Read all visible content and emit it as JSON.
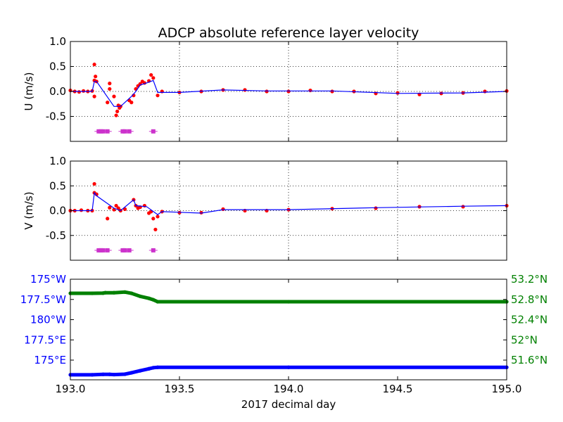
{
  "chart_data": [
    {
      "type": "scatter",
      "title": "ADCP absolute reference layer velocity",
      "ylabel": "U (m/s)",
      "xlim": [
        193.0,
        195.0
      ],
      "ylim": [
        -1.0,
        1.0
      ],
      "yticks": [
        "1.0",
        "0.5",
        "0.0",
        "-0.5"
      ],
      "grid": true,
      "series": [
        {
          "color": "#ff0000",
          "points": [
            [
              193.0,
              0.02
            ],
            [
              193.02,
              0.0
            ],
            [
              193.04,
              -0.01
            ],
            [
              193.06,
              0.01
            ],
            [
              193.08,
              0.0
            ],
            [
              193.1,
              0.01
            ],
            [
              193.11,
              0.22
            ],
            [
              193.11,
              0.54
            ],
            [
              193.115,
              0.3
            ],
            [
              193.11,
              -0.1
            ],
            [
              193.12,
              0.2
            ],
            [
              193.17,
              -0.22
            ],
            [
              193.18,
              0.16
            ],
            [
              193.18,
              0.05
            ],
            [
              193.2,
              -0.1
            ],
            [
              193.21,
              -0.48
            ],
            [
              193.215,
              -0.4
            ],
            [
              193.22,
              -0.28
            ],
            [
              193.225,
              -0.33
            ],
            [
              193.23,
              -0.3
            ],
            [
              193.27,
              -0.18
            ],
            [
              193.28,
              -0.22
            ],
            [
              193.29,
              -0.08
            ],
            [
              193.3,
              0.05
            ],
            [
              193.31,
              0.11
            ],
            [
              193.32,
              0.15
            ],
            [
              193.33,
              0.2
            ],
            [
              193.34,
              0.17
            ],
            [
              193.36,
              0.21
            ],
            [
              193.37,
              0.33
            ],
            [
              193.38,
              0.27
            ],
            [
              193.4,
              -0.08
            ],
            [
              193.42,
              0.0
            ],
            [
              193.5,
              -0.02
            ],
            [
              193.6,
              0.0
            ],
            [
              193.7,
              0.03
            ],
            [
              193.8,
              0.03
            ],
            [
              193.9,
              0.0
            ],
            [
              194.0,
              0.0
            ],
            [
              194.1,
              0.02
            ],
            [
              194.2,
              0.0
            ],
            [
              194.3,
              0.0
            ],
            [
              194.4,
              -0.04
            ],
            [
              194.5,
              -0.03
            ],
            [
              194.6,
              -0.06
            ],
            [
              194.7,
              -0.04
            ],
            [
              194.8,
              -0.03
            ],
            [
              194.9,
              0.0
            ],
            [
              195.0,
              0.01
            ]
          ]
        },
        {
          "color": "#0000ff",
          "points": [
            [
              193.0,
              0.0
            ],
            [
              193.05,
              0.0
            ],
            [
              193.1,
              0.0
            ],
            [
              193.11,
              0.2
            ],
            [
              193.12,
              0.2
            ],
            [
              193.2,
              -0.3
            ],
            [
              193.23,
              -0.3
            ],
            [
              193.28,
              -0.1
            ],
            [
              193.3,
              0.0
            ],
            [
              193.32,
              0.13
            ],
            [
              193.35,
              0.17
            ],
            [
              193.38,
              0.22
            ],
            [
              193.4,
              -0.02
            ],
            [
              193.5,
              -0.02
            ],
            [
              193.7,
              0.03
            ],
            [
              193.9,
              0.01
            ],
            [
              194.2,
              0.01
            ],
            [
              194.5,
              -0.04
            ],
            [
              194.8,
              -0.03
            ],
            [
              195.0,
              0.0
            ]
          ]
        },
        {
          "color": "#cc33cc",
          "points": [
            [
              193.13,
              -0.8
            ],
            [
              193.14,
              -0.8
            ],
            [
              193.15,
              -0.8
            ],
            [
              193.17,
              -0.8
            ],
            [
              193.24,
              -0.8
            ],
            [
              193.25,
              -0.8
            ],
            [
              193.27,
              -0.8
            ],
            [
              193.38,
              -0.8
            ]
          ]
        }
      ]
    },
    {
      "type": "scatter",
      "ylabel": "V (m/s)",
      "xlim": [
        193.0,
        195.0
      ],
      "ylim": [
        -1.0,
        1.0
      ],
      "yticks": [
        "1.0",
        "0.5",
        "0.0",
        "-0.5"
      ],
      "grid": true,
      "series": [
        {
          "color": "#ff0000",
          "points": [
            [
              193.0,
              0.0
            ],
            [
              193.02,
              0.0
            ],
            [
              193.05,
              0.01
            ],
            [
              193.08,
              0.0
            ],
            [
              193.1,
              0.0
            ],
            [
              193.11,
              0.36
            ],
            [
              193.11,
              0.54
            ],
            [
              193.12,
              0.33
            ],
            [
              193.17,
              -0.16
            ],
            [
              193.18,
              0.06
            ],
            [
              193.2,
              0.02
            ],
            [
              193.21,
              0.1
            ],
            [
              193.22,
              0.05
            ],
            [
              193.23,
              0.0
            ],
            [
              193.25,
              0.03
            ],
            [
              193.29,
              0.22
            ],
            [
              193.3,
              0.1
            ],
            [
              193.31,
              0.05
            ],
            [
              193.32,
              0.07
            ],
            [
              193.34,
              0.1
            ],
            [
              193.36,
              -0.05
            ],
            [
              193.37,
              -0.02
            ],
            [
              193.38,
              -0.16
            ],
            [
              193.39,
              -0.38
            ],
            [
              193.4,
              -0.12
            ],
            [
              193.42,
              -0.02
            ],
            [
              193.5,
              -0.04
            ],
            [
              193.6,
              -0.04
            ],
            [
              193.7,
              0.03
            ],
            [
              193.8,
              0.0
            ],
            [
              193.9,
              0.0
            ],
            [
              194.0,
              0.02
            ],
            [
              194.2,
              0.04
            ],
            [
              194.4,
              0.05
            ],
            [
              194.6,
              0.08
            ],
            [
              194.8,
              0.08
            ],
            [
              195.0,
              0.1
            ]
          ]
        },
        {
          "color": "#0000ff",
          "points": [
            [
              193.0,
              0.0
            ],
            [
              193.1,
              0.0
            ],
            [
              193.11,
              0.36
            ],
            [
              193.12,
              0.3
            ],
            [
              193.2,
              0.05
            ],
            [
              193.23,
              0.0
            ],
            [
              193.29,
              0.22
            ],
            [
              193.3,
              0.1
            ],
            [
              193.35,
              0.08
            ],
            [
              193.4,
              -0.08
            ],
            [
              193.42,
              -0.02
            ],
            [
              193.6,
              -0.05
            ],
            [
              193.7,
              0.02
            ],
            [
              194.0,
              0.02
            ],
            [
              194.4,
              0.06
            ],
            [
              194.8,
              0.09
            ],
            [
              195.0,
              0.1
            ]
          ]
        },
        {
          "color": "#cc33cc",
          "points": [
            [
              193.13,
              -0.8
            ],
            [
              193.14,
              -0.8
            ],
            [
              193.15,
              -0.8
            ],
            [
              193.17,
              -0.8
            ],
            [
              193.24,
              -0.8
            ],
            [
              193.25,
              -0.8
            ],
            [
              193.27,
              -0.8
            ],
            [
              193.38,
              -0.8
            ]
          ]
        }
      ]
    },
    {
      "type": "scatter",
      "xlabel": "2017 decimal day",
      "xlim": [
        193.0,
        195.0
      ],
      "xticks": [
        "193.0",
        "193.5",
        "194.0",
        "194.5",
        "195.0"
      ],
      "ylim": [
        0,
        5
      ],
      "yticks_left": [
        "175°W",
        "177.5°W",
        "180°W",
        "177.5°E",
        "175°E"
      ],
      "yticks_right": [
        "53.2°N",
        "52.8°N",
        "52.4°N",
        "52°N",
        "51.6°N"
      ],
      "left_color": "#0000ff",
      "right_color": "#008000",
      "series": [
        {
          "color": "#008000",
          "points": [
            [
              193.0,
              4.3
            ],
            [
              193.1,
              4.3
            ],
            [
              193.15,
              4.31
            ],
            [
              193.16,
              4.33
            ],
            [
              193.2,
              4.33
            ],
            [
              193.25,
              4.36
            ],
            [
              193.28,
              4.3
            ],
            [
              193.32,
              4.15
            ],
            [
              193.36,
              4.05
            ],
            [
              193.38,
              3.98
            ],
            [
              193.4,
              3.88
            ],
            [
              194.0,
              3.88
            ],
            [
              195.0,
              3.88
            ]
          ]
        },
        {
          "color": "#0000ff",
          "points": [
            [
              193.0,
              0.25
            ],
            [
              193.1,
              0.25
            ],
            [
              193.15,
              0.27
            ],
            [
              193.18,
              0.27
            ],
            [
              193.2,
              0.26
            ],
            [
              193.25,
              0.28
            ],
            [
              193.28,
              0.35
            ],
            [
              193.32,
              0.45
            ],
            [
              193.36,
              0.55
            ],
            [
              193.38,
              0.6
            ],
            [
              193.4,
              0.62
            ],
            [
              194.0,
              0.62
            ],
            [
              195.0,
              0.62
            ]
          ]
        }
      ]
    }
  ]
}
